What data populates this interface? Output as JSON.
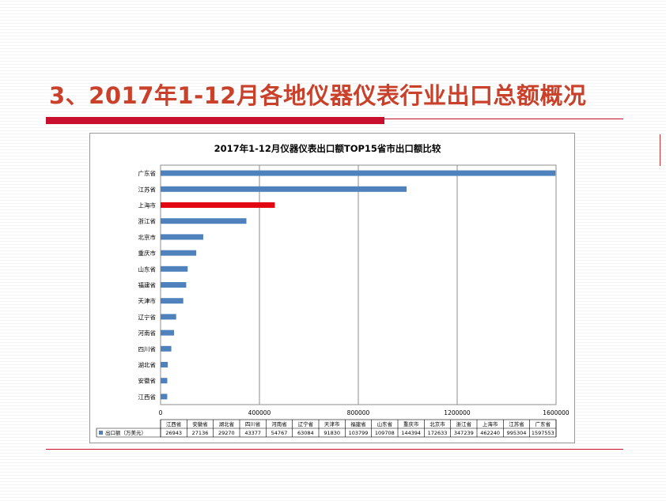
{
  "slide": {
    "title": "3、2017年1-12月各地仪器仪表行业出口总额概况",
    "accent_color": "#c8102e"
  },
  "chart_data": {
    "type": "bar",
    "orientation": "horizontal",
    "title": "2017年1-12月仪器仪表出口额TOP15省市出口额比较",
    "categories": [
      "江西省",
      "安徽省",
      "湖北省",
      "四川省",
      "河南省",
      "辽宁省",
      "天津市",
      "福建省",
      "山东省",
      "重庆市",
      "北京市",
      "浙江省",
      "上海市",
      "江苏省",
      "广东省"
    ],
    "series": [
      {
        "name": "出口额（万美元）",
        "values": [
          26943,
          27136,
          29270,
          43377,
          54767,
          63084,
          91830,
          103799,
          109708,
          144394,
          172633,
          347239,
          462240,
          995304,
          1597553
        ],
        "color": "#4f81bd"
      }
    ],
    "highlight": {
      "category": "上海市",
      "color": "#e30613"
    },
    "x_ticks": [
      "0",
      "400000",
      "800000",
      "1200000",
      "1600000"
    ],
    "xlim": [
      0,
      1600000
    ],
    "grid": true,
    "legend_position": "bottom data table"
  }
}
